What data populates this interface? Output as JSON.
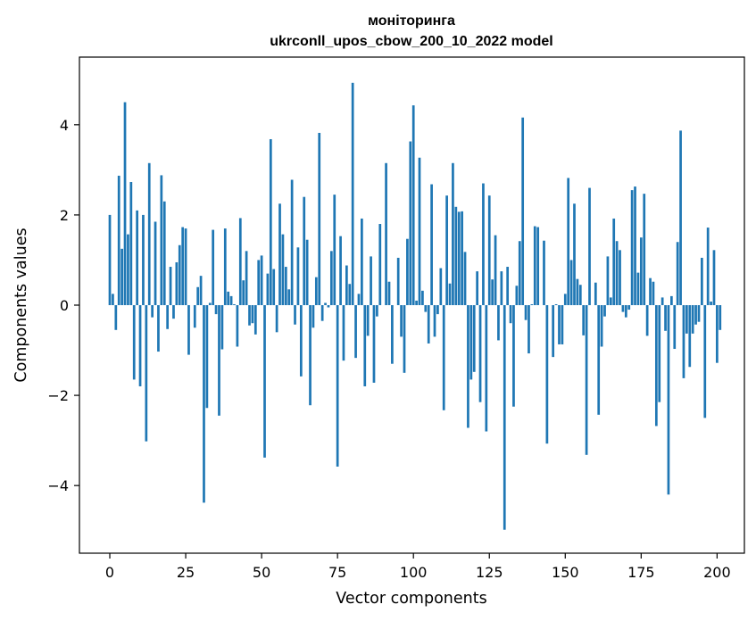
{
  "chart_data": {
    "type": "bar",
    "title_line1": "моніторинга",
    "title_line2": "ukrconll_upos_cbow_200_10_2022 model",
    "xlabel": "Vector components",
    "ylabel": "Components values",
    "xlim": [
      -10,
      209
    ],
    "ylim": [
      -5.5,
      5.5
    ],
    "xticks": [
      0,
      25,
      50,
      75,
      100,
      125,
      150,
      175,
      200
    ],
    "yticks": [
      -4,
      -2,
      0,
      2,
      4
    ],
    "bar_color": "#1f77b4",
    "grid": false,
    "legend": "none",
    "x_start": 0,
    "values": [
      2.0,
      0.25,
      -0.55,
      2.87,
      1.25,
      4.5,
      1.57,
      2.73,
      -1.65,
      2.1,
      -1.8,
      2.0,
      -3.02,
      3.15,
      -0.27,
      1.85,
      -1.03,
      2.88,
      2.3,
      -0.53,
      0.85,
      -0.3,
      0.95,
      1.33,
      1.73,
      1.7,
      -1.1,
      0.0,
      -0.5,
      0.4,
      0.65,
      -4.38,
      -2.28,
      0.05,
      1.67,
      -0.2,
      -2.45,
      -0.98,
      1.7,
      0.3,
      0.2,
      0.02,
      -0.92,
      1.93,
      0.55,
      1.2,
      -0.45,
      -0.4,
      -0.65,
      1.0,
      1.1,
      -3.38,
      0.7,
      3.68,
      0.8,
      -0.6,
      2.25,
      1.57,
      0.85,
      0.35,
      2.78,
      -0.43,
      1.28,
      -1.58,
      2.4,
      1.45,
      -2.22,
      -0.5,
      0.62,
      3.82,
      -0.35,
      0.05,
      -0.05,
      1.2,
      2.45,
      -3.58,
      1.53,
      -1.23,
      0.88,
      0.47,
      4.93,
      -1.17,
      0.25,
      1.92,
      -1.8,
      -0.68,
      1.08,
      -1.72,
      -0.25,
      1.8,
      0.0,
      3.15,
      0.52,
      -1.3,
      0.0,
      1.05,
      -0.7,
      -1.5,
      1.47,
      3.63,
      4.43,
      0.1,
      3.27,
      0.32,
      -0.15,
      -0.85,
      2.68,
      -0.7,
      -0.2,
      0.82,
      -2.33,
      2.43,
      0.48,
      3.15,
      2.18,
      2.07,
      2.08,
      1.18,
      -2.72,
      -1.65,
      -1.48,
      0.75,
      -2.15,
      2.7,
      -2.8,
      2.43,
      0.57,
      1.55,
      -0.78,
      0.75,
      -4.98,
      0.85,
      -0.4,
      -2.25,
      0.43,
      1.42,
      4.16,
      -0.33,
      -1.07,
      0.02,
      1.75,
      1.73,
      0.0,
      1.43,
      -3.07,
      0.0,
      -1.15,
      0.02,
      -0.87,
      -0.87,
      0.25,
      2.82,
      1.0,
      2.25,
      0.58,
      0.45,
      -0.67,
      -3.32,
      2.6,
      0.0,
      0.5,
      -2.43,
      -0.92,
      -0.25,
      1.08,
      0.17,
      1.92,
      1.42,
      1.22,
      -0.15,
      -0.27,
      -0.1,
      2.55,
      2.63,
      0.72,
      1.5,
      2.47,
      -0.68,
      0.6,
      0.52,
      -2.68,
      -2.15,
      0.17,
      -0.57,
      -4.2,
      0.2,
      -0.97,
      1.4,
      3.87,
      -1.62,
      -0.63,
      -1.37,
      -0.63,
      -0.43,
      -0.37,
      1.05,
      -2.5,
      1.72,
      0.08,
      1.22,
      -1.28,
      -0.55
    ]
  }
}
